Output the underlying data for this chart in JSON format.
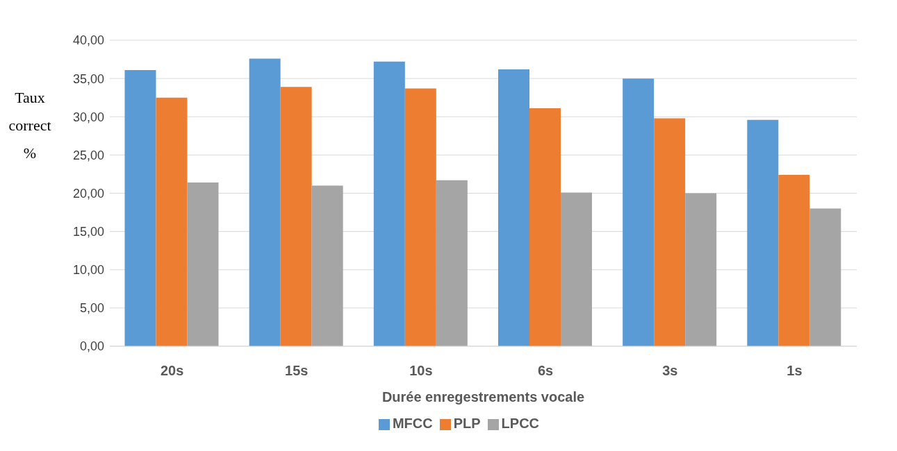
{
  "chart_data": {
    "type": "bar",
    "xlabel": "Durée enregestrements vocale",
    "ylabel": "Taux correct %",
    "categories": [
      "20s",
      "15s",
      "10s",
      "6s",
      "3s",
      "1s"
    ],
    "series": [
      {
        "name": "MFCC",
        "color": "#5b9bd5",
        "values": [
          36.1,
          37.6,
          37.2,
          36.2,
          35.0,
          29.6
        ]
      },
      {
        "name": "PLP",
        "color": "#ed7d31",
        "values": [
          32.5,
          33.9,
          33.7,
          31.1,
          29.8,
          22.4
        ]
      },
      {
        "name": "LPCC",
        "color": "#a5a5a5",
        "values": [
          21.4,
          21.0,
          21.7,
          20.1,
          20.0,
          18.0
        ]
      }
    ],
    "ylim": [
      0,
      40
    ],
    "yticks": [
      {
        "value": 0,
        "label": "0,00"
      },
      {
        "value": 5,
        "label": "5,00"
      },
      {
        "value": 10,
        "label": "10,00"
      },
      {
        "value": 15,
        "label": "15,00"
      },
      {
        "value": 20,
        "label": "20,00"
      },
      {
        "value": 25,
        "label": "25,00"
      },
      {
        "value": 30,
        "label": "30,00"
      },
      {
        "value": 35,
        "label": "35,00"
      },
      {
        "value": 40,
        "label": "40,00"
      }
    ],
    "grid": "y",
    "legend": "bottom"
  }
}
